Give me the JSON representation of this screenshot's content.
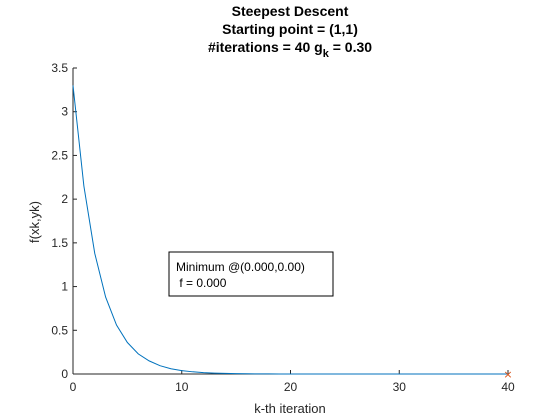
{
  "chart_data": {
    "type": "line",
    "title_lines": [
      "Steepest Descent",
      "Starting point = (1,1)"
    ],
    "title_line3": {
      "prefix": "#iterations = 40 g",
      "subscript": "k",
      "suffix": " = 0.30"
    },
    "xlabel": "k-th iteration",
    "ylabel": "f(xk,yk)",
    "xlim": [
      0,
      40
    ],
    "ylim": [
      0,
      3.5
    ],
    "xticks": [
      0,
      10,
      20,
      30,
      40
    ],
    "yticks": [
      0,
      0.5,
      1,
      1.5,
      2,
      2.5,
      3,
      3.5
    ],
    "xtick_labels": [
      "0",
      "10",
      "20",
      "30",
      "40"
    ],
    "ytick_labels": [
      "0",
      "0.5",
      "1",
      "1.5",
      "2",
      "2.5",
      "3",
      "3.5"
    ],
    "grid": false,
    "line_color": "#0072BD",
    "marker_color": "#D95319",
    "series": [
      {
        "x": [
          0,
          1,
          2,
          3,
          4,
          5,
          6,
          7,
          8,
          9,
          10,
          11,
          12,
          13,
          14,
          15,
          16,
          17,
          18,
          19,
          20,
          21,
          22,
          23,
          24,
          25,
          26,
          27,
          28,
          29,
          30,
          31,
          32,
          33,
          34,
          35,
          36,
          37,
          38,
          39,
          40
        ],
        "values": [
          3.3,
          2.15,
          1.38,
          0.88,
          0.56,
          0.36,
          0.23,
          0.15,
          0.095,
          0.06,
          0.039,
          0.025,
          0.016,
          0.01,
          0.0066,
          0.0042,
          0.0027,
          0.0017,
          0.0011,
          0.0007,
          0.00045,
          0.00029,
          0.00019,
          0.00012,
          8e-05,
          5e-05,
          3e-05,
          2e-05,
          1e-05,
          8e-06,
          5e-06,
          3e-06,
          2e-06,
          1e-06,
          8e-07,
          5e-07,
          3e-07,
          2e-07,
          1e-07,
          8e-08,
          5e-08
        ]
      }
    ],
    "minimum_marker": {
      "x": 40,
      "y": 0,
      "symbol": "×"
    },
    "annotation": {
      "line1": "Minimum @(0.000,0.00)",
      "line2": " f = 0.000"
    }
  }
}
